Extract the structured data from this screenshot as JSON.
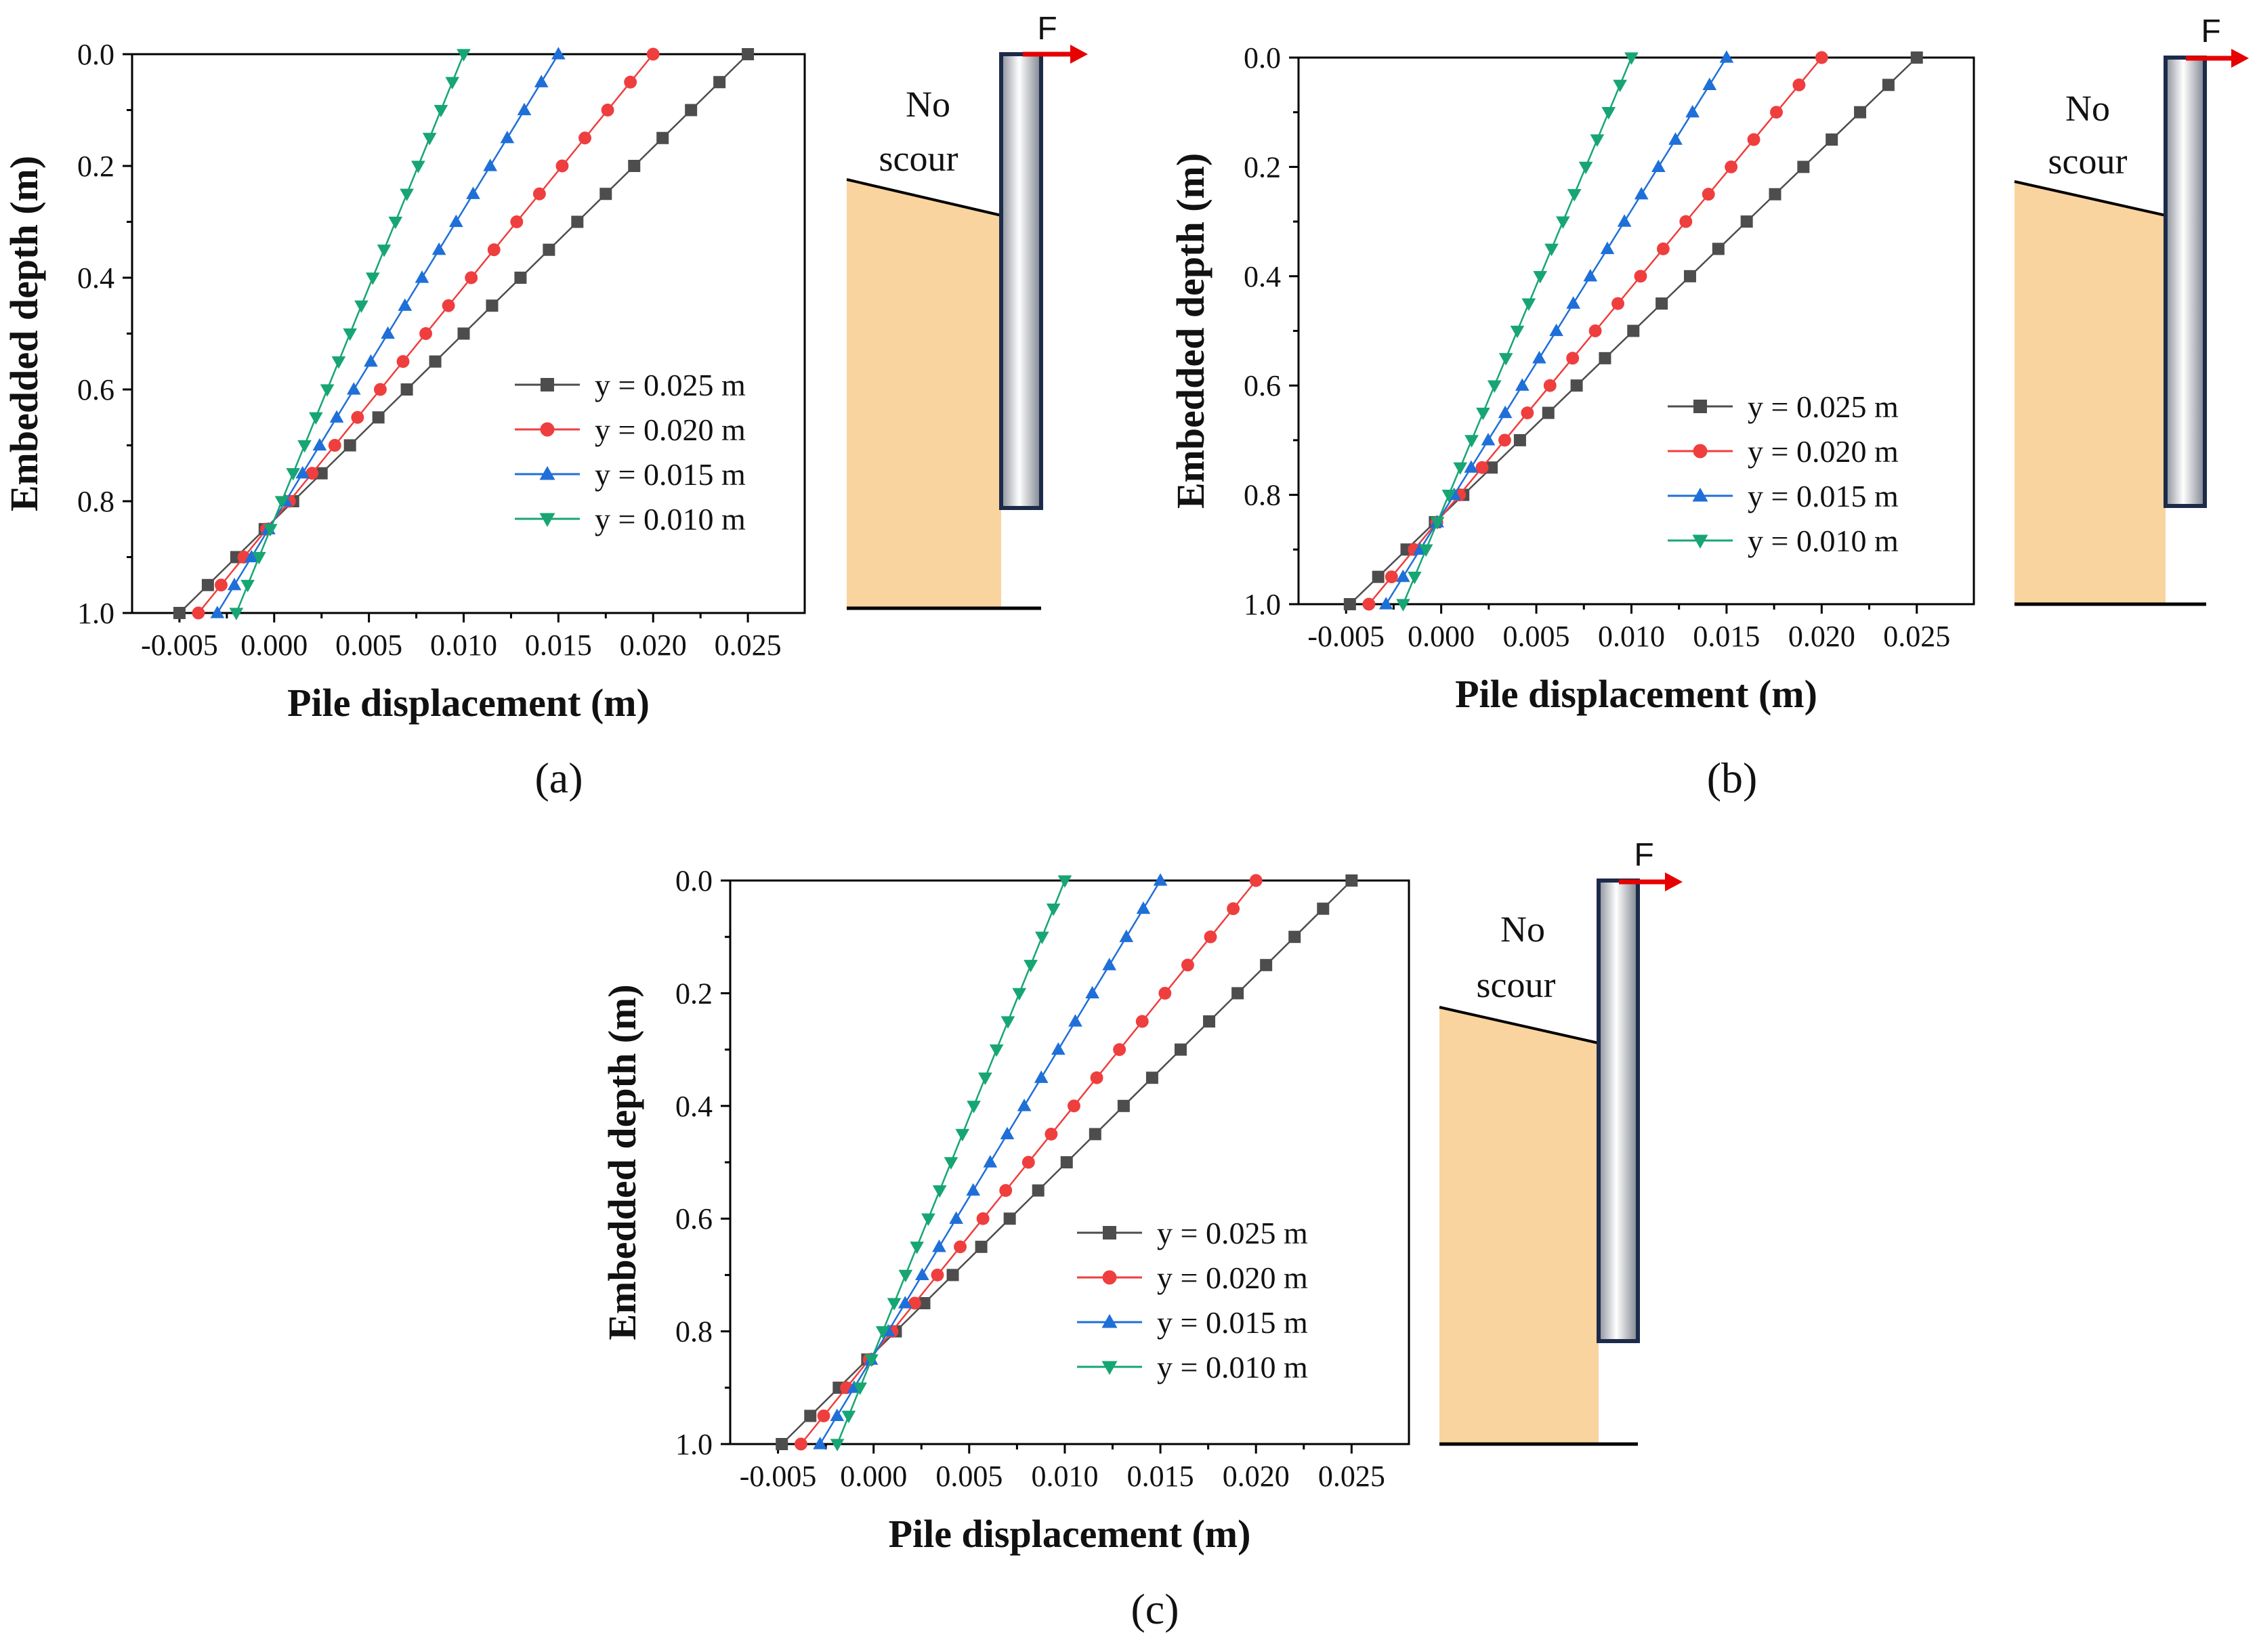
{
  "figure": {
    "panels": [
      {
        "label": "(a)",
        "scour_label_1": "No",
        "scour_label_2": "scour",
        "force_label": "F"
      },
      {
        "label": "(b)",
        "scour_label_1": "No",
        "scour_label_2": "scour",
        "force_label": "F"
      },
      {
        "label": "(c)",
        "scour_label_1": "No",
        "scour_label_2": "scour",
        "force_label": "F"
      }
    ]
  },
  "colors": {
    "y025": "#4d4d4d",
    "y020": "#ef3e3e",
    "y015": "#1f6fd8",
    "y010": "#17a673",
    "soil": "#f9d49f",
    "pile_edge": "#1c2b4a",
    "force_arrow": "#e60000"
  },
  "chart_data": [
    {
      "type": "line",
      "panel": "a",
      "xlabel": "Pile displacement (m)",
      "ylabel": "Embedded depth (m)",
      "xlim": [
        -0.0075,
        0.028
      ],
      "ylim": [
        1.0,
        0.0
      ],
      "xticks": [
        -0.005,
        0.0,
        0.005,
        0.01,
        0.015,
        0.02,
        0.025
      ],
      "xtick_labels": [
        "-0.005",
        "0.000",
        "0.005",
        "0.010",
        "0.015",
        "0.020",
        "0.025"
      ],
      "yticks": [
        0.0,
        0.2,
        0.4,
        0.6,
        0.8,
        1.0
      ],
      "ytick_labels": [
        "0.0",
        "0.2",
        "0.4",
        "0.6",
        "0.8",
        "1.0"
      ],
      "legend_position": "center-right",
      "series": [
        {
          "name": "y = 0.025 m",
          "marker": "square",
          "top": 0.025,
          "bottom": -0.005,
          "color_key": "y025"
        },
        {
          "name": "y = 0.020 m",
          "marker": "circle",
          "top": 0.02,
          "bottom": -0.004,
          "color_key": "y020"
        },
        {
          "name": "y = 0.015 m",
          "marker": "triangle-up",
          "top": 0.015,
          "bottom": -0.003,
          "color_key": "y015"
        },
        {
          "name": "y = 0.010 m",
          "marker": "triangle-down",
          "top": 0.01,
          "bottom": -0.002,
          "color_key": "y010"
        }
      ],
      "depth_points": 20
    },
    {
      "type": "line",
      "panel": "b",
      "xlabel": "Pile displacement (m)",
      "ylabel": "Embedded depth (m)",
      "xlim": [
        -0.0075,
        0.028
      ],
      "ylim": [
        1.0,
        0.0
      ],
      "xticks": [
        -0.005,
        0.0,
        0.005,
        0.01,
        0.015,
        0.02,
        0.025
      ],
      "xtick_labels": [
        "-0.005",
        "0.000",
        "0.005",
        "0.010",
        "0.015",
        "0.020",
        "0.025"
      ],
      "yticks": [
        0.0,
        0.2,
        0.4,
        0.6,
        0.8,
        1.0
      ],
      "ytick_labels": [
        "0.0",
        "0.2",
        "0.4",
        "0.6",
        "0.8",
        "1.0"
      ],
      "legend_position": "center-right",
      "series": [
        {
          "name": "y = 0.025 m",
          "marker": "square",
          "top": 0.025,
          "bottom": -0.0048,
          "color_key": "y025"
        },
        {
          "name": "y = 0.020 m",
          "marker": "circle",
          "top": 0.02,
          "bottom": -0.0038,
          "color_key": "y020"
        },
        {
          "name": "y = 0.015 m",
          "marker": "triangle-up",
          "top": 0.015,
          "bottom": -0.0029,
          "color_key": "y015"
        },
        {
          "name": "y = 0.010 m",
          "marker": "triangle-down",
          "top": 0.01,
          "bottom": -0.002,
          "color_key": "y010"
        }
      ],
      "depth_points": 20
    },
    {
      "type": "line",
      "panel": "c",
      "xlabel": "Pile displacement (m)",
      "ylabel": "Embedded depth (m)",
      "xlim": [
        -0.0075,
        0.028
      ],
      "ylim": [
        1.0,
        0.0
      ],
      "xticks": [
        -0.005,
        0.0,
        0.005,
        0.01,
        0.015,
        0.02,
        0.025
      ],
      "xtick_labels": [
        "-0.005",
        "0.000",
        "0.005",
        "0.010",
        "0.015",
        "0.020",
        "0.025"
      ],
      "yticks": [
        0.0,
        0.2,
        0.4,
        0.6,
        0.8,
        1.0
      ],
      "ytick_labels": [
        "0.0",
        "0.2",
        "0.4",
        "0.6",
        "0.8",
        "1.0"
      ],
      "legend_position": "center-right",
      "series": [
        {
          "name": "y = 0.025 m",
          "marker": "square",
          "top": 0.025,
          "bottom": -0.0048,
          "color_key": "y025"
        },
        {
          "name": "y = 0.020 m",
          "marker": "circle",
          "top": 0.02,
          "bottom": -0.0038,
          "color_key": "y020"
        },
        {
          "name": "y = 0.015 m",
          "marker": "triangle-up",
          "top": 0.015,
          "bottom": -0.0028,
          "color_key": "y015"
        },
        {
          "name": "y = 0.010 m",
          "marker": "triangle-down",
          "top": 0.01,
          "bottom": -0.0019,
          "color_key": "y010"
        }
      ],
      "depth_points": 20
    }
  ]
}
